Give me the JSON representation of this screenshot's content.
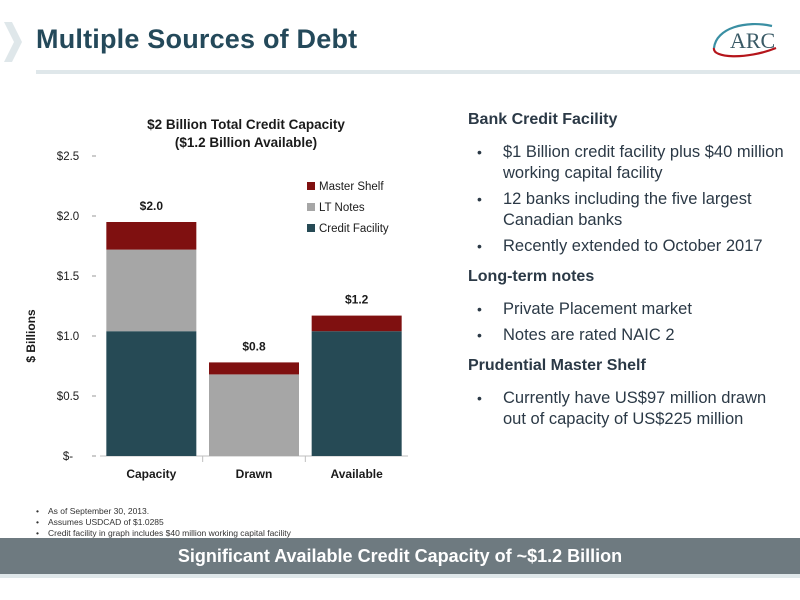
{
  "header": {
    "title": "Multiple Sources of Debt",
    "logo_text": "ARC"
  },
  "chart_data": {
    "type": "bar",
    "stacked": true,
    "title": "$2 Billion Total Credit Capacity",
    "subtitle": "($1.2 Billion Available)",
    "ylabel": "$ Billions",
    "xlabel": "",
    "ylim": [
      0,
      2.5
    ],
    "yticks": [
      0,
      0.5,
      1.0,
      1.5,
      2.0,
      2.5
    ],
    "ytick_labels": [
      "$-",
      "$0.5",
      "$1.0",
      "$1.5",
      "$2.0",
      "$2.5"
    ],
    "categories": [
      "Capacity",
      "Drawn",
      "Available"
    ],
    "series": [
      {
        "name": "Credit Facility",
        "color": "#264a55",
        "values": [
          1.04,
          0.0,
          1.04
        ]
      },
      {
        "name": "LT Notes",
        "color": "#a6a6a6",
        "values": [
          0.68,
          0.68,
          0.0
        ]
      },
      {
        "name": "Master Shelf",
        "color": "#7f1010",
        "values": [
          0.23,
          0.1,
          0.13
        ]
      }
    ],
    "totals": [
      "$2.0",
      "$0.8",
      "$1.2"
    ],
    "legend_position": "top-right",
    "grid": false
  },
  "panel": {
    "sections": [
      {
        "heading": "Bank Credit Facility",
        "bullets": [
          "$1 Billion credit facility plus $40 million working capital facility",
          "12 banks including the five largest Canadian banks",
          "Recently extended to October 2017"
        ]
      },
      {
        "heading": "Long-term notes",
        "bullets": [
          "Private Placement market",
          "Notes are rated NAIC 2"
        ]
      },
      {
        "heading": "Prudential Master Shelf",
        "bullets": [
          "Currently have US$97 million drawn out of capacity of US$225 million"
        ]
      }
    ]
  },
  "footnotes": [
    "As of September 30, 2013.",
    "Assumes USDCAD of $1.0285",
    "Credit facility in graph includes $40 million working capital facility"
  ],
  "banner": {
    "text": "Significant Available Credit Capacity of ~$1.2 Billion"
  },
  "colors": {
    "title": "#24495a",
    "banner_bg": "#6e7a80",
    "logo_red": "#b5151b",
    "logo_teal": "#3a8fa3"
  }
}
